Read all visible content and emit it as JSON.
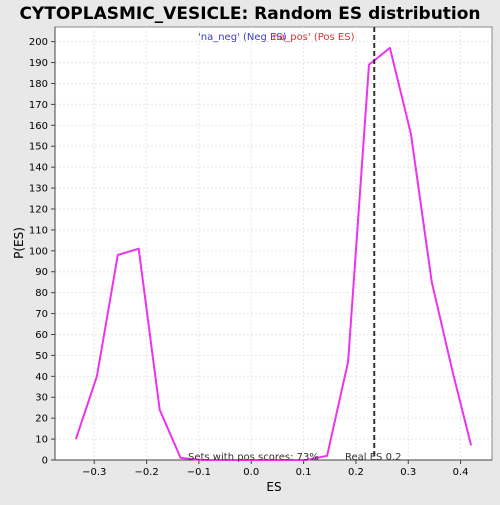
{
  "chart_data": {
    "type": "line",
    "title": "CYTOPLASMIC_VESICLE: Random ES distribution",
    "xlabel": "ES",
    "ylabel": "P(ES)",
    "xlim": [
      -0.375,
      0.46
    ],
    "ylim": [
      0,
      207
    ],
    "x_ticks": [
      -0.3,
      -0.2,
      -0.1,
      0.0,
      0.1,
      0.2,
      0.3,
      0.4
    ],
    "x_tick_labels": [
      "−0.3",
      "−0.2",
      "−0.1",
      "0.0",
      "0.1",
      "0.2",
      "0.3",
      "0.4"
    ],
    "y_ticks": [
      0,
      10,
      20,
      30,
      40,
      50,
      60,
      70,
      80,
      90,
      100,
      110,
      120,
      130,
      140,
      150,
      160,
      170,
      180,
      190,
      200
    ],
    "grid": true,
    "legend": {
      "position": "top-center",
      "entries": [
        {
          "label": "'na_neg' (Neg ES)",
          "color": "#4040c0"
        },
        {
          "label": "'na_pos' (Pos ES)",
          "color": "#e03030"
        }
      ]
    },
    "series": [
      {
        "name": "'na_pos' (Pos ES)",
        "color": "#ee33ee",
        "points": [
          [
            -0.335,
            10
          ],
          [
            -0.295,
            40
          ],
          [
            -0.255,
            98
          ],
          [
            -0.215,
            101
          ],
          [
            -0.175,
            24
          ],
          [
            -0.135,
            1
          ],
          [
            -0.095,
            0
          ],
          [
            0.0,
            0
          ],
          [
            0.105,
            0
          ],
          [
            0.145,
            2
          ],
          [
            0.185,
            47
          ],
          [
            0.225,
            189
          ],
          [
            0.265,
            197
          ],
          [
            0.305,
            156
          ],
          [
            0.345,
            85
          ],
          [
            0.385,
            42
          ],
          [
            0.42,
            7
          ]
        ]
      }
    ],
    "annotations": {
      "real_es_value": 0.235,
      "real_es_label": "Real ES 0.2",
      "sets_label": "Sets with pos scores: 73%"
    }
  }
}
